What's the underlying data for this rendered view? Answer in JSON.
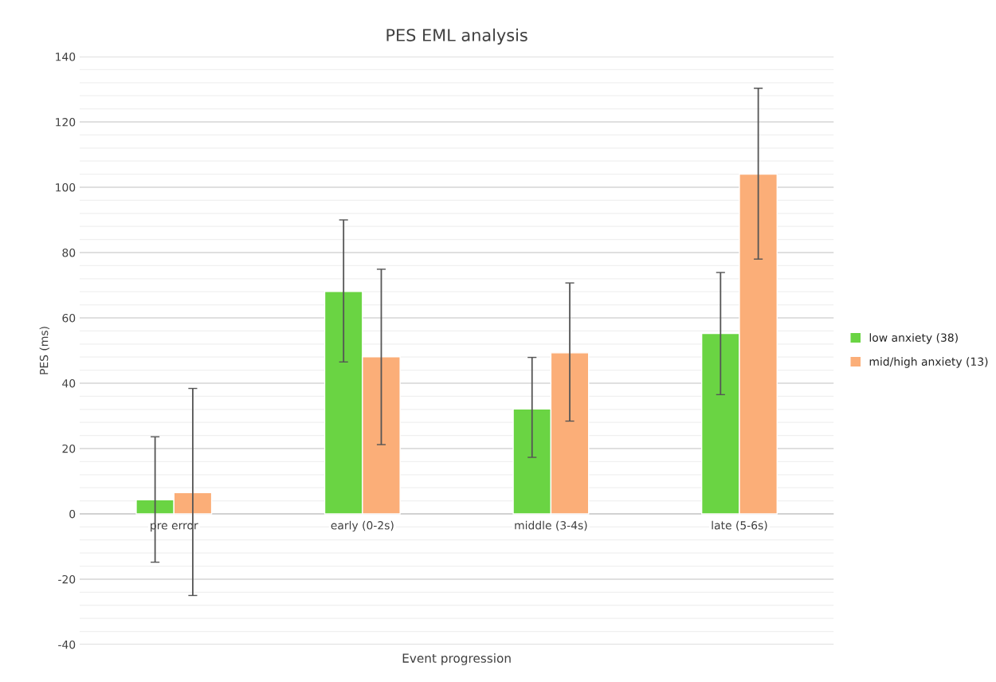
{
  "chart_data": {
    "type": "bar",
    "title": "PES EML analysis",
    "xlabel": "Event progression",
    "ylabel": "PES (ms)",
    "categories": [
      "pre error",
      "early (0-2s)",
      "middle (3-4s)",
      "late (5-6s)"
    ],
    "series": [
      {
        "name": "low anxiety (38)",
        "color": "#6ad443",
        "values": [
          4.3,
          68.1,
          32.1,
          55.2
        ],
        "errors": [
          [
            -14.8,
            23.6
          ],
          [
            46.5,
            90
          ],
          [
            17.3,
            47.9
          ],
          [
            36.5,
            73.9
          ]
        ]
      },
      {
        "name": "mid/high anxiety (13)",
        "color": "#fbae78",
        "values": [
          6.5,
          48.1,
          49.3,
          104
        ],
        "errors": [
          [
            -25,
            38.4
          ],
          [
            21.2,
            74.9
          ],
          [
            28.4,
            70.7
          ],
          [
            78,
            130.3
          ]
        ]
      }
    ],
    "ylim": [
      -40,
      140
    ],
    "yticks": [
      -40,
      -20,
      0,
      20,
      40,
      60,
      80,
      100,
      120,
      140
    ],
    "grid": "y",
    "legend": "right"
  }
}
